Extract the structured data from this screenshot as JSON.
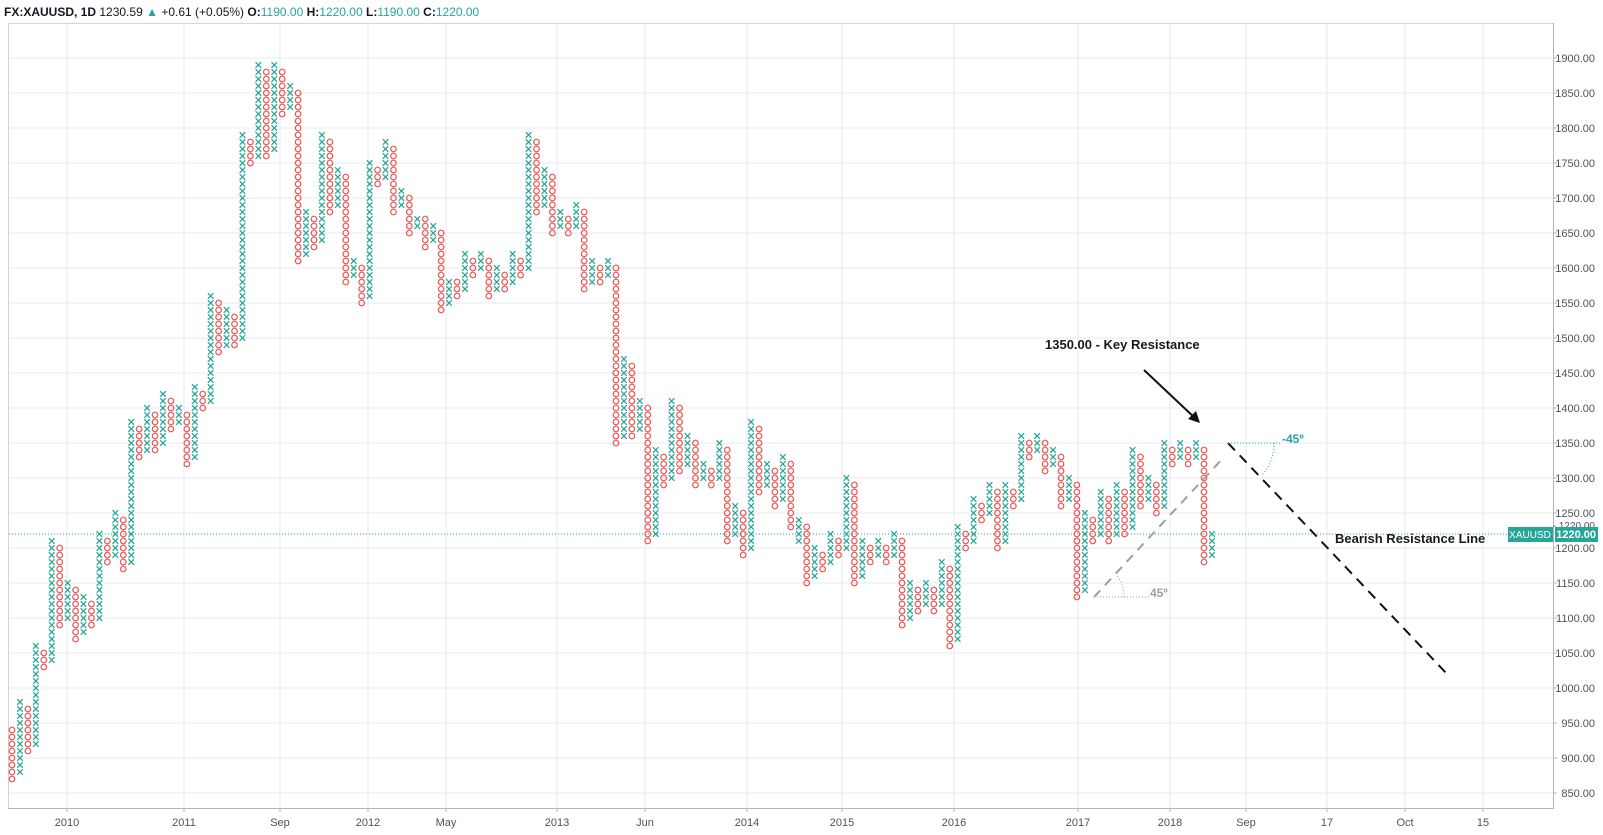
{
  "header": {
    "symbol": "FX:XAUUSD, 1D",
    "last": "1230.59",
    "change_arrow": "▲",
    "change": "+0.61 (+0.05%)",
    "o_label": "O:",
    "o_value": "1190.00",
    "h_label": "H:",
    "h_value": "1220.00",
    "l_label": "L:",
    "l_value": "1190.00",
    "c_label": "C:",
    "c_value": "1220.00"
  },
  "colors": {
    "x_color": "#26a69a",
    "o_color": "#ef5350",
    "grid": "#e7eaf1",
    "axis_text": "#4c525e",
    "price_line": "#26a69a",
    "annotation": "#1a1a1a",
    "angle_green": "#26a69a",
    "angle_gray": "#9e9e9e"
  },
  "chart_data": {
    "type": "point-and-figure",
    "symbol": "XAUUSD",
    "box_size": 10,
    "current_price": 1220.0,
    "current_price_label": "1220.00",
    "current_price_tag": "XAUUSD",
    "ylim": [
      820,
      1930
    ],
    "y_ticks": [
      850,
      900,
      950,
      1000,
      1050,
      1100,
      1150,
      1200,
      1250,
      1300,
      1350,
      1400,
      1450,
      1500,
      1550,
      1600,
      1650,
      1700,
      1750,
      1800,
      1850,
      1900
    ],
    "y_tick_labels": [
      "850.00",
      "900.00",
      "950.00",
      "1000.00",
      "1050.00",
      "1100.00",
      "1150.00",
      "1200.00",
      "1250.00",
      "1300.00",
      "1350.00",
      "1400.00",
      "1450.00",
      "1500.00",
      "1550.00",
      "1600.00",
      "1650.00",
      "1700.00",
      "1750.00",
      "1800.00",
      "1850.00",
      "1900.00"
    ],
    "extra_price_label": "1220.00",
    "x_tick_labels": [
      "2010",
      "2011",
      "Sep",
      "2012",
      "May",
      "2013",
      "Jun",
      "2014",
      "2015",
      "2016",
      "2017",
      "2018",
      "Sep",
      "17",
      "Oct",
      "15"
    ],
    "columns": [
      {
        "t": "O",
        "lo": 870,
        "hi": 940
      },
      {
        "t": "X",
        "lo": 880,
        "hi": 980
      },
      {
        "t": "O",
        "lo": 910,
        "hi": 970
      },
      {
        "t": "X",
        "lo": 920,
        "hi": 1060
      },
      {
        "t": "O",
        "lo": 1030,
        "hi": 1050
      },
      {
        "t": "X",
        "lo": 1040,
        "hi": 1210
      },
      {
        "t": "O",
        "lo": 1090,
        "hi": 1200
      },
      {
        "t": "X",
        "lo": 1100,
        "hi": 1150
      },
      {
        "t": "O",
        "lo": 1070,
        "hi": 1140
      },
      {
        "t": "X",
        "lo": 1080,
        "hi": 1130
      },
      {
        "t": "O",
        "lo": 1090,
        "hi": 1120
      },
      {
        "t": "X",
        "lo": 1100,
        "hi": 1220
      },
      {
        "t": "O",
        "lo": 1180,
        "hi": 1210
      },
      {
        "t": "X",
        "lo": 1190,
        "hi": 1250
      },
      {
        "t": "O",
        "lo": 1170,
        "hi": 1240
      },
      {
        "t": "X",
        "lo": 1180,
        "hi": 1380
      },
      {
        "t": "O",
        "lo": 1330,
        "hi": 1370
      },
      {
        "t": "X",
        "lo": 1340,
        "hi": 1400
      },
      {
        "t": "O",
        "lo": 1340,
        "hi": 1390
      },
      {
        "t": "X",
        "lo": 1350,
        "hi": 1420
      },
      {
        "t": "O",
        "lo": 1370,
        "hi": 1410
      },
      {
        "t": "X",
        "lo": 1380,
        "hi": 1400
      },
      {
        "t": "O",
        "lo": 1320,
        "hi": 1390
      },
      {
        "t": "X",
        "lo": 1330,
        "hi": 1430
      },
      {
        "t": "O",
        "lo": 1400,
        "hi": 1420
      },
      {
        "t": "X",
        "lo": 1410,
        "hi": 1560
      },
      {
        "t": "O",
        "lo": 1480,
        "hi": 1550
      },
      {
        "t": "X",
        "lo": 1490,
        "hi": 1540
      },
      {
        "t": "O",
        "lo": 1490,
        "hi": 1530
      },
      {
        "t": "X",
        "lo": 1500,
        "hi": 1790
      },
      {
        "t": "O",
        "lo": 1750,
        "hi": 1780
      },
      {
        "t": "X",
        "lo": 1760,
        "hi": 1890
      },
      {
        "t": "O",
        "lo": 1760,
        "hi": 1880
      },
      {
        "t": "X",
        "lo": 1770,
        "hi": 1890
      },
      {
        "t": "O",
        "lo": 1820,
        "hi": 1880
      },
      {
        "t": "X",
        "lo": 1830,
        "hi": 1860
      },
      {
        "t": "O",
        "lo": 1610,
        "hi": 1850
      },
      {
        "t": "X",
        "lo": 1620,
        "hi": 1680
      },
      {
        "t": "O",
        "lo": 1630,
        "hi": 1670
      },
      {
        "t": "X",
        "lo": 1640,
        "hi": 1790
      },
      {
        "t": "O",
        "lo": 1680,
        "hi": 1780
      },
      {
        "t": "X",
        "lo": 1690,
        "hi": 1740
      },
      {
        "t": "O",
        "lo": 1580,
        "hi": 1730
      },
      {
        "t": "X",
        "lo": 1590,
        "hi": 1610
      },
      {
        "t": "O",
        "lo": 1550,
        "hi": 1600
      },
      {
        "t": "X",
        "lo": 1560,
        "hi": 1750
      },
      {
        "t": "O",
        "lo": 1720,
        "hi": 1740
      },
      {
        "t": "X",
        "lo": 1730,
        "hi": 1780
      },
      {
        "t": "O",
        "lo": 1680,
        "hi": 1770
      },
      {
        "t": "X",
        "lo": 1690,
        "hi": 1710
      },
      {
        "t": "O",
        "lo": 1650,
        "hi": 1700
      },
      {
        "t": "X",
        "lo": 1660,
        "hi": 1670
      },
      {
        "t": "O",
        "lo": 1630,
        "hi": 1670
      },
      {
        "t": "X",
        "lo": 1640,
        "hi": 1660
      },
      {
        "t": "O",
        "lo": 1540,
        "hi": 1650
      },
      {
        "t": "X",
        "lo": 1550,
        "hi": 1580
      },
      {
        "t": "O",
        "lo": 1560,
        "hi": 1580
      },
      {
        "t": "X",
        "lo": 1570,
        "hi": 1620
      },
      {
        "t": "O",
        "lo": 1590,
        "hi": 1610
      },
      {
        "t": "X",
        "lo": 1600,
        "hi": 1620
      },
      {
        "t": "O",
        "lo": 1560,
        "hi": 1610
      },
      {
        "t": "X",
        "lo": 1570,
        "hi": 1600
      },
      {
        "t": "O",
        "lo": 1570,
        "hi": 1590
      },
      {
        "t": "X",
        "lo": 1580,
        "hi": 1620
      },
      {
        "t": "O",
        "lo": 1590,
        "hi": 1610
      },
      {
        "t": "X",
        "lo": 1600,
        "hi": 1790
      },
      {
        "t": "O",
        "lo": 1680,
        "hi": 1780
      },
      {
        "t": "X",
        "lo": 1690,
        "hi": 1740
      },
      {
        "t": "O",
        "lo": 1650,
        "hi": 1730
      },
      {
        "t": "X",
        "lo": 1660,
        "hi": 1680
      },
      {
        "t": "O",
        "lo": 1650,
        "hi": 1670
      },
      {
        "t": "X",
        "lo": 1660,
        "hi": 1690
      },
      {
        "t": "O",
        "lo": 1570,
        "hi": 1680
      },
      {
        "t": "X",
        "lo": 1580,
        "hi": 1610
      },
      {
        "t": "O",
        "lo": 1580,
        "hi": 1600
      },
      {
        "t": "X",
        "lo": 1590,
        "hi": 1610
      },
      {
        "t": "O",
        "lo": 1350,
        "hi": 1600
      },
      {
        "t": "X",
        "lo": 1360,
        "hi": 1470
      },
      {
        "t": "O",
        "lo": 1360,
        "hi": 1460
      },
      {
        "t": "X",
        "lo": 1370,
        "hi": 1410
      },
      {
        "t": "O",
        "lo": 1210,
        "hi": 1400
      },
      {
        "t": "X",
        "lo": 1220,
        "hi": 1340
      },
      {
        "t": "O",
        "lo": 1290,
        "hi": 1330
      },
      {
        "t": "X",
        "lo": 1300,
        "hi": 1410
      },
      {
        "t": "O",
        "lo": 1310,
        "hi": 1400
      },
      {
        "t": "X",
        "lo": 1320,
        "hi": 1360
      },
      {
        "t": "O",
        "lo": 1290,
        "hi": 1350
      },
      {
        "t": "X",
        "lo": 1300,
        "hi": 1320
      },
      {
        "t": "O",
        "lo": 1290,
        "hi": 1310
      },
      {
        "t": "X",
        "lo": 1300,
        "hi": 1350
      },
      {
        "t": "O",
        "lo": 1210,
        "hi": 1340
      },
      {
        "t": "X",
        "lo": 1220,
        "hi": 1260
      },
      {
        "t": "O",
        "lo": 1190,
        "hi": 1250
      },
      {
        "t": "X",
        "lo": 1200,
        "hi": 1380
      },
      {
        "t": "O",
        "lo": 1280,
        "hi": 1370
      },
      {
        "t": "X",
        "lo": 1290,
        "hi": 1320
      },
      {
        "t": "O",
        "lo": 1260,
        "hi": 1310
      },
      {
        "t": "X",
        "lo": 1270,
        "hi": 1330
      },
      {
        "t": "O",
        "lo": 1230,
        "hi": 1320
      },
      {
        "t": "X",
        "lo": 1210,
        "hi": 1240
      },
      {
        "t": "O",
        "lo": 1150,
        "hi": 1230
      },
      {
        "t": "X",
        "lo": 1160,
        "hi": 1200
      },
      {
        "t": "O",
        "lo": 1170,
        "hi": 1190
      },
      {
        "t": "X",
        "lo": 1180,
        "hi": 1220
      },
      {
        "t": "O",
        "lo": 1190,
        "hi": 1210
      },
      {
        "t": "X",
        "lo": 1200,
        "hi": 1300
      },
      {
        "t": "O",
        "lo": 1150,
        "hi": 1290
      },
      {
        "t": "X",
        "lo": 1160,
        "hi": 1210
      },
      {
        "t": "O",
        "lo": 1180,
        "hi": 1200
      },
      {
        "t": "X",
        "lo": 1190,
        "hi": 1210
      },
      {
        "t": "O",
        "lo": 1180,
        "hi": 1200
      },
      {
        "t": "X",
        "lo": 1190,
        "hi": 1220
      },
      {
        "t": "O",
        "lo": 1090,
        "hi": 1210
      },
      {
        "t": "X",
        "lo": 1100,
        "hi": 1150
      },
      {
        "t": "O",
        "lo": 1110,
        "hi": 1140
      },
      {
        "t": "X",
        "lo": 1120,
        "hi": 1150
      },
      {
        "t": "O",
        "lo": 1110,
        "hi": 1140
      },
      {
        "t": "X",
        "lo": 1120,
        "hi": 1180
      },
      {
        "t": "O",
        "lo": 1060,
        "hi": 1170
      },
      {
        "t": "X",
        "lo": 1070,
        "hi": 1230
      },
      {
        "t": "O",
        "lo": 1200,
        "hi": 1220
      },
      {
        "t": "X",
        "lo": 1210,
        "hi": 1270
      },
      {
        "t": "O",
        "lo": 1240,
        "hi": 1260
      },
      {
        "t": "X",
        "lo": 1250,
        "hi": 1290
      },
      {
        "t": "O",
        "lo": 1200,
        "hi": 1280
      },
      {
        "t": "X",
        "lo": 1210,
        "hi": 1290
      },
      {
        "t": "O",
        "lo": 1260,
        "hi": 1280
      },
      {
        "t": "X",
        "lo": 1270,
        "hi": 1360
      },
      {
        "t": "O",
        "lo": 1330,
        "hi": 1350
      },
      {
        "t": "X",
        "lo": 1340,
        "hi": 1360
      },
      {
        "t": "O",
        "lo": 1310,
        "hi": 1350
      },
      {
        "t": "X",
        "lo": 1320,
        "hi": 1340
      },
      {
        "t": "O",
        "lo": 1260,
        "hi": 1330
      },
      {
        "t": "X",
        "lo": 1270,
        "hi": 1300
      },
      {
        "t": "O",
        "lo": 1130,
        "hi": 1290
      },
      {
        "t": "X",
        "lo": 1140,
        "hi": 1250
      },
      {
        "t": "O",
        "lo": 1210,
        "hi": 1240
      },
      {
        "t": "X",
        "lo": 1220,
        "hi": 1280
      },
      {
        "t": "O",
        "lo": 1210,
        "hi": 1270
      },
      {
        "t": "X",
        "lo": 1220,
        "hi": 1290
      },
      {
        "t": "O",
        "lo": 1220,
        "hi": 1280
      },
      {
        "t": "X",
        "lo": 1230,
        "hi": 1340
      },
      {
        "t": "O",
        "lo": 1260,
        "hi": 1330
      },
      {
        "t": "X",
        "lo": 1270,
        "hi": 1300
      },
      {
        "t": "O",
        "lo": 1250,
        "hi": 1290
      },
      {
        "t": "X",
        "lo": 1260,
        "hi": 1350
      },
      {
        "t": "O",
        "lo": 1320,
        "hi": 1340
      },
      {
        "t": "X",
        "lo": 1330,
        "hi": 1350
      },
      {
        "t": "O",
        "lo": 1320,
        "hi": 1340
      },
      {
        "t": "X",
        "lo": 1330,
        "hi": 1350
      },
      {
        "t": "O",
        "lo": 1180,
        "hi": 1340
      },
      {
        "t": "X",
        "lo": 1190,
        "hi": 1220
      }
    ],
    "annotations": {
      "key_resistance": "1350.00 - Key Resistance",
      "bearish_line": "Bearish Resistance Line",
      "angle_down": "-45º",
      "angle_up": "45º"
    }
  }
}
